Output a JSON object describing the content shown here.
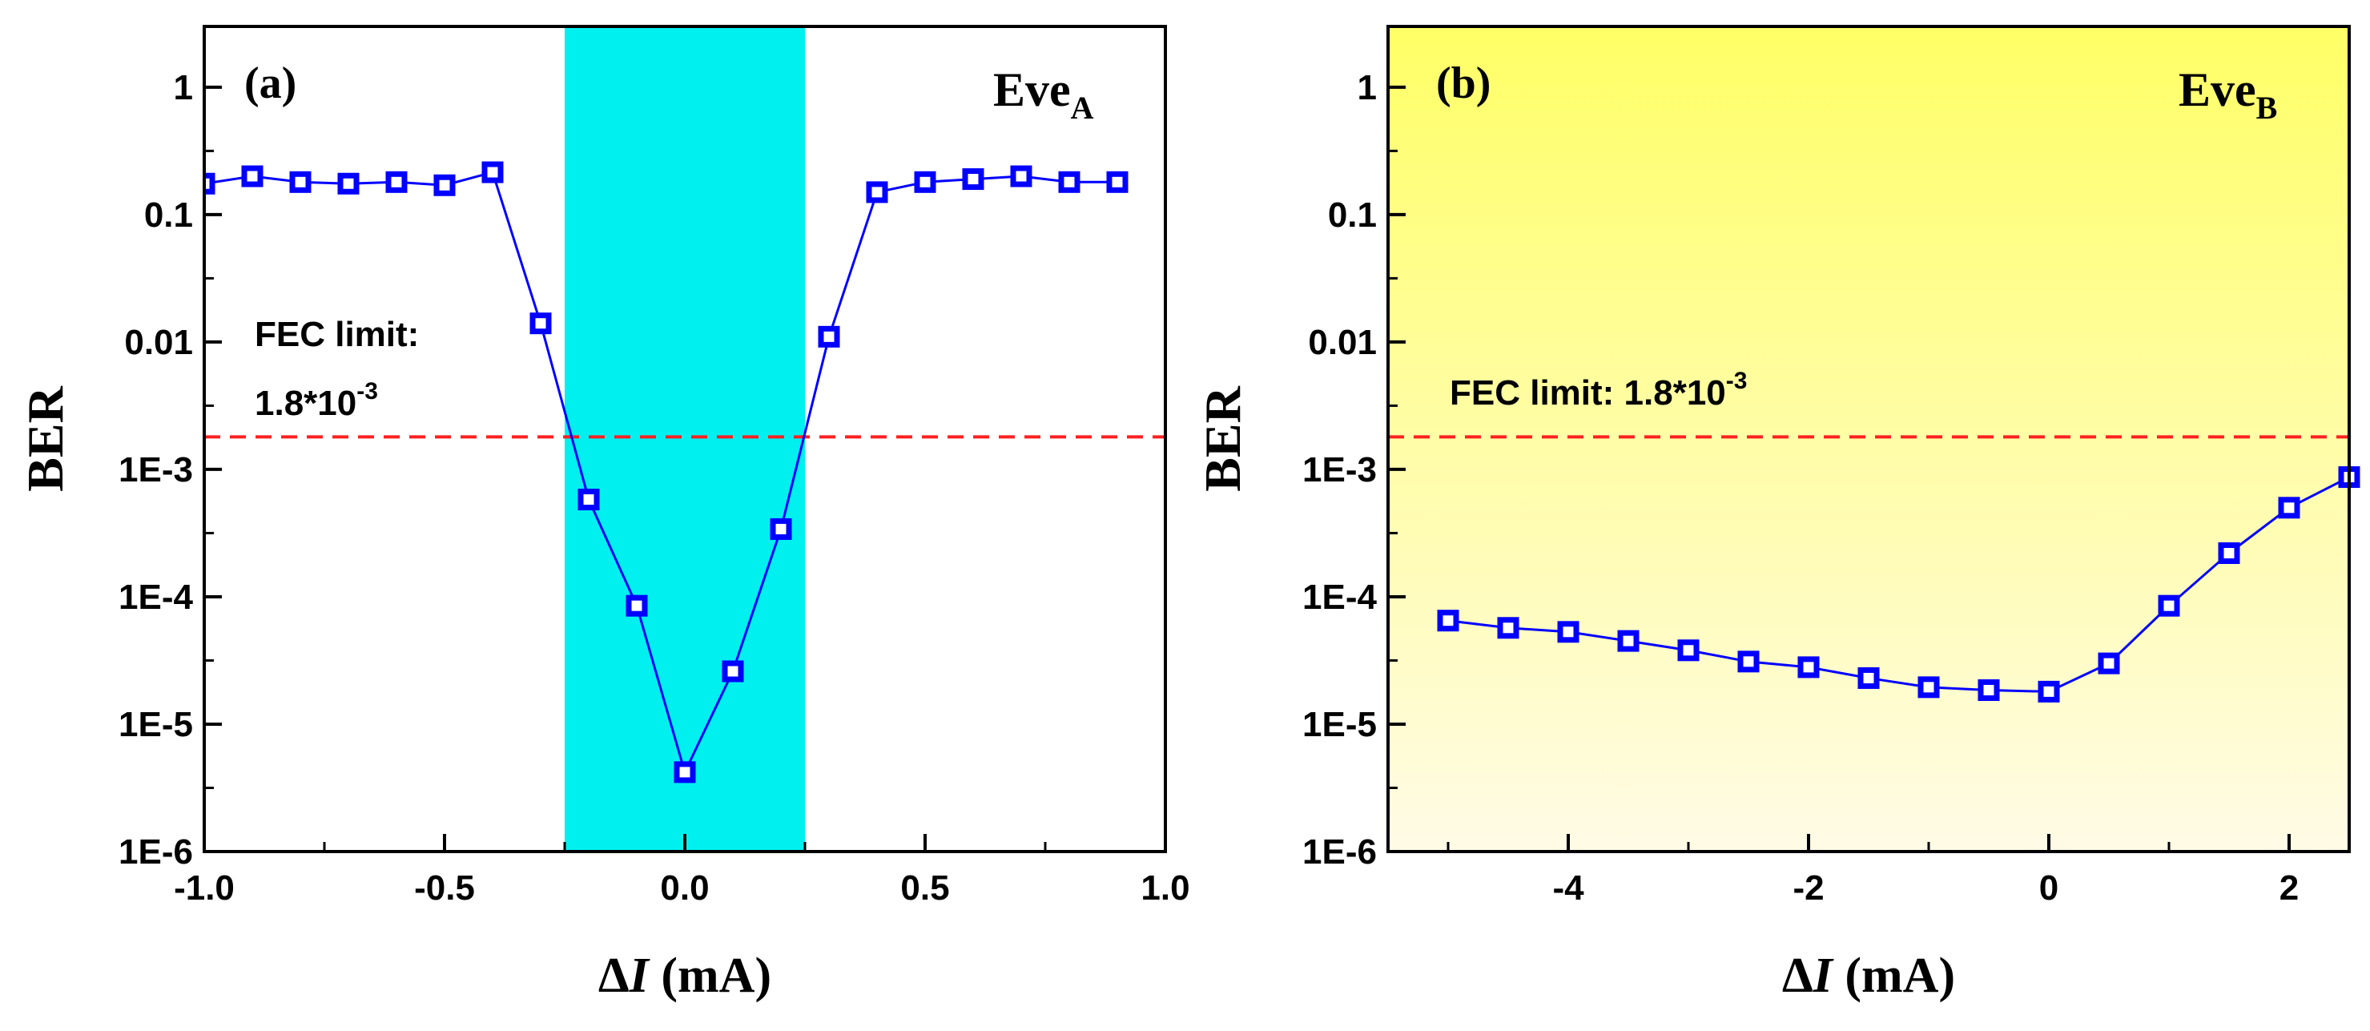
{
  "chart_data": [
    {
      "type": "scatter",
      "panel_label": "(a)",
      "eve_label": {
        "main": "Eve",
        "sub": "A"
      },
      "xlabel": {
        "delta": "Δ",
        "var": "I",
        "unit": " (mA)"
      },
      "ylabel": "BER",
      "yscale": "log",
      "xlim": [
        -1.0,
        1.0
      ],
      "ylim": [
        1e-06,
        3
      ],
      "x_ticks": [
        -1.0,
        -0.5,
        0.0,
        0.5,
        1.0
      ],
      "x_tick_labels": [
        "-1.0",
        "-0.5",
        "0.0",
        "0.5",
        "1.0"
      ],
      "y_ticks": [
        1e-06,
        1e-05,
        0.0001,
        0.001,
        0.01,
        0.1,
        1
      ],
      "y_tick_labels": [
        "1E-6",
        "1E-5",
        "1E-4",
        "1E-3",
        "0.01",
        "0.1",
        "1"
      ],
      "fec_limit": {
        "value": 0.0018,
        "text_line1": "FEC limit:",
        "text_line2_main": "1.8*10",
        "text_line2_sup": "-3",
        "color": "#ff2020"
      },
      "shaded_region": {
        "x0": -0.25,
        "x1": 0.25,
        "color": "#00f0f0"
      },
      "background": "#ffffff",
      "series": [
        {
          "name": "BER",
          "color": "#0000ff",
          "x": [
            -1.0,
            -0.9,
            -0.8,
            -0.7,
            -0.6,
            -0.5,
            -0.4,
            -0.3,
            -0.2,
            -0.1,
            0.0,
            0.1,
            0.2,
            0.3,
            0.4,
            0.5,
            0.6,
            0.7,
            0.8,
            0.9
          ],
          "y": [
            0.175,
            0.2,
            0.18,
            0.175,
            0.18,
            0.17,
            0.215,
            0.014,
            0.00058,
            8.5e-05,
            4.2e-06,
            2.6e-05,
            0.00034,
            0.011,
            0.15,
            0.18,
            0.19,
            0.2,
            0.18,
            0.18
          ]
        }
      ]
    },
    {
      "type": "scatter",
      "panel_label": "(b)",
      "eve_label": {
        "main": "Eve",
        "sub": "B"
      },
      "xlabel": {
        "delta": "Δ",
        "var": "I",
        "unit": " (mA)"
      },
      "ylabel": "BER",
      "yscale": "log",
      "xlim": [
        -5.5,
        2.5
      ],
      "ylim": [
        1e-06,
        3
      ],
      "x_ticks": [
        -4,
        -2,
        0,
        2
      ],
      "x_tick_labels": [
        "-4",
        "-2",
        "0",
        "2"
      ],
      "y_ticks": [
        1e-06,
        1e-05,
        0.0001,
        0.001,
        0.01,
        0.1,
        1
      ],
      "y_tick_labels": [
        "1E-6",
        "1E-5",
        "1E-4",
        "1E-3",
        "0.01",
        "0.1",
        "1"
      ],
      "fec_limit": {
        "value": 0.0018,
        "text_line1": "FEC limit: 1.8*10",
        "text_line1_sup": "-3",
        "color": "#ff2020"
      },
      "background_gradient": [
        "#ffff66",
        "#fffbe6"
      ],
      "series": [
        {
          "name": "BER",
          "color": "#0000ff",
          "x": [
            -5.0,
            -4.5,
            -4.0,
            -3.5,
            -3.0,
            -2.5,
            -2.0,
            -1.5,
            -1.0,
            -0.5,
            0.0,
            0.5,
            1.0,
            1.5,
            2.0,
            2.5
          ],
          "y": [
            6.5e-05,
            5.7e-05,
            5.3e-05,
            4.5e-05,
            3.8e-05,
            3.1e-05,
            2.8e-05,
            2.3e-05,
            1.95e-05,
            1.85e-05,
            1.8e-05,
            3e-05,
            8.5e-05,
            0.00022,
            0.0005,
            0.00087
          ]
        }
      ]
    }
  ]
}
